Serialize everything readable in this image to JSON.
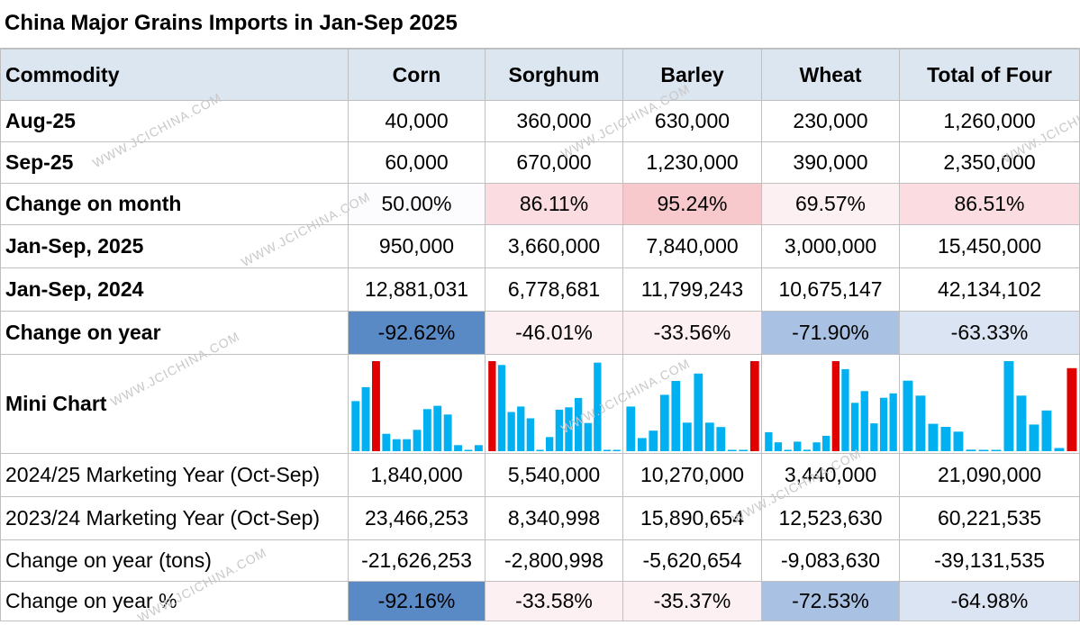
{
  "title": "China Major Grains Imports in Jan-Sep 2025",
  "watermark": "WWW.JCICHINA.COM",
  "colors": {
    "header_bg": "#dce6f1",
    "bar_blue": "#00b0f0",
    "bar_red": "#e00000",
    "heat_pink_light": "#fdf0f2",
    "heat_pink_mid": "#fbdde1",
    "heat_pink_strong": "#f7c9cd",
    "heat_blue_strong": "#5a8ac6",
    "heat_blue_mid": "#a9c1e2",
    "heat_blue_light": "#dbe4f2",
    "heat_neutral": "#fcfcff"
  },
  "header": [
    "Commodity",
    "Corn",
    "Sorghum",
    "Barley",
    "Wheat",
    "Total of Four"
  ],
  "rows": [
    {
      "label": "Aug-25",
      "bold": true,
      "values": [
        "40,000",
        "360,000",
        "630,000",
        "230,000",
        "1,260,000"
      ]
    },
    {
      "label": "Sep-25",
      "bold": true,
      "values": [
        "60,000",
        "670,000",
        "1,230,000",
        "390,000",
        "2,350,000"
      ]
    },
    {
      "label": "Change on month",
      "bold": true,
      "values": [
        "50.00%",
        "86.11%",
        "95.24%",
        "69.57%",
        "86.51%"
      ],
      "fills": [
        "heat_neutral",
        "heat_pink_mid",
        "heat_pink_strong",
        "heat_pink_light",
        "heat_pink_mid"
      ]
    },
    {
      "label": "Jan-Sep, 2025",
      "bold": true,
      "values": [
        "950,000",
        "3,660,000",
        "7,840,000",
        "3,000,000",
        "15,450,000"
      ]
    },
    {
      "label": "Jan-Sep, 2024",
      "bold": true,
      "values": [
        "12,881,031",
        "6,778,681",
        "11,799,243",
        "10,675,147",
        "42,134,102"
      ]
    },
    {
      "label": "Change on year",
      "bold": true,
      "values": [
        "-92.62%",
        "-46.01%",
        "-33.56%",
        "-71.90%",
        "-63.33%"
      ],
      "fills": [
        "heat_blue_strong",
        "heat_pink_light",
        "heat_pink_light",
        "heat_blue_mid",
        "heat_blue_light"
      ]
    }
  ],
  "mini_chart": {
    "label": "Mini Chart",
    "series": [
      {
        "name": "Corn",
        "values": [
          7.5,
          9.6,
          13.5,
          2.6,
          1.8,
          1.8,
          3.2,
          6.3,
          6.8,
          5.5,
          0.9,
          0.1,
          0.9
        ],
        "highlight_index": 2
      },
      {
        "name": "Sorghum",
        "values": [
          11.5,
          11.0,
          5.0,
          5.7,
          4.2,
          0.1,
          1.8,
          5.3,
          5.6,
          6.8,
          3.6,
          11.3,
          0.1,
          0.1
        ],
        "highlight_index": 0
      },
      {
        "name": "Barley",
        "values": [
          6.1,
          1.8,
          2.8,
          7.7,
          9.6,
          3.9,
          10.6,
          3.9,
          3.3,
          0.1,
          0.1,
          12.3
        ],
        "highlight_index": 11
      },
      {
        "name": "Wheat",
        "values": [
          2.6,
          1.2,
          0.1,
          1.3,
          0.2,
          1.2,
          2.1,
          12.3,
          11.2,
          6.6,
          8.2,
          3.8,
          7.3,
          7.9
        ],
        "highlight_index": 7
      },
      {
        "name": "Total of Four",
        "values": [
          9.0,
          7.1,
          3.5,
          3.1,
          2.5,
          0.2,
          0.1,
          0.1,
          11.5,
          7.1,
          3.4,
          5.2,
          0.4,
          10.6
        ],
        "highlight_index": 13
      }
    ]
  },
  "rows_bottom": [
    {
      "label": "2024/25 Marketing Year (Oct-Sep)",
      "values": [
        "1,840,000",
        "5,540,000",
        "10,270,000",
        "3,440,000",
        "21,090,000"
      ]
    },
    {
      "label": "2023/24 Marketing Year (Oct-Sep)",
      "values": [
        "23,466,253",
        "8,340,998",
        "15,890,654",
        "12,523,630",
        "60,221,535"
      ]
    },
    {
      "label": "Change on year (tons)",
      "values": [
        "-21,626,253",
        "-2,800,998",
        "-5,620,654",
        "-9,083,630",
        "-39,131,535"
      ]
    },
    {
      "label": "Change on year %",
      "values": [
        "-92.16%",
        "-33.58%",
        "-35.37%",
        "-72.53%",
        "-64.98%"
      ],
      "fills": [
        "heat_blue_strong",
        "heat_pink_light",
        "heat_pink_light",
        "heat_blue_mid",
        "heat_blue_light"
      ]
    }
  ]
}
